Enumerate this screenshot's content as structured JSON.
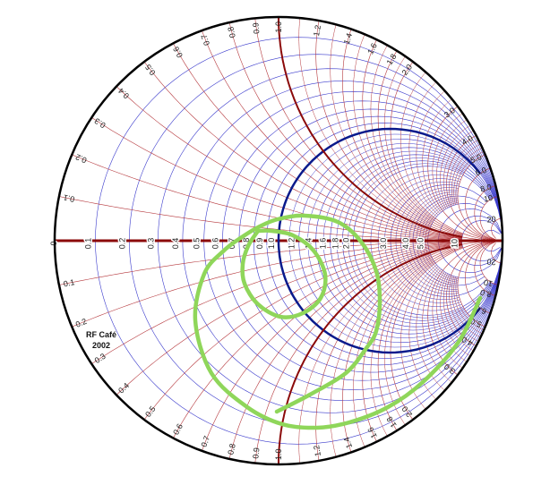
{
  "watermark": {
    "line1": "RF Café",
    "line2": "2002"
  },
  "colors": {
    "resistance_grid": "#3a3acc",
    "reactance_grid": "#b5373c",
    "unit_resistance_circle": "#0a1a8c",
    "unit_reactance_arcs": "#8b0a0a",
    "real_axis": "#8b0a0a",
    "trace": "#8fd65a",
    "outline": "#000000"
  },
  "chart_data": {
    "type": "smith",
    "coordinate": "reflection coefficient (real, imaginary)",
    "resistance_labels": [
      "0",
      "0.1",
      "0.2",
      "0.3",
      "0.4",
      "0.5",
      "0.6",
      "0.7",
      "0.8",
      "0.9",
      "1.0",
      "1.2",
      "1.4",
      "1.6",
      "1.8",
      "2.0",
      "3.0",
      "4.0",
      "5.0",
      "10"
    ],
    "reactance_labels": [
      "0.1",
      "0.2",
      "0.3",
      "0.4",
      "0.5",
      "0.6",
      "0.7",
      "0.8",
      "0.9",
      "1.0",
      "1.2",
      "1.4",
      "1.6",
      "1.8",
      "2.0",
      "3.0",
      "4.0",
      "5.0",
      "6.0",
      "8.0",
      "10",
      "20"
    ],
    "grid": {
      "resistance_full": [
        0.1,
        0.2,
        0.3,
        0.4,
        0.5,
        0.6,
        0.7,
        0.8,
        0.9,
        1.0,
        1.2,
        1.4,
        1.6,
        1.8,
        2.0,
        3.0,
        4.0,
        5.0,
        6.0,
        8.0,
        10,
        20
      ],
      "resistance_fine": [
        1.1,
        1.3,
        1.5,
        1.7,
        1.9,
        2.2,
        2.4,
        2.6,
        2.8,
        3.2,
        3.4,
        3.6,
        3.8,
        4.2,
        4.4,
        4.6,
        4.8
      ],
      "reactance_full": [
        1.0,
        2.0,
        3.0,
        4.0,
        5.0,
        6.0,
        8.0,
        10,
        20
      ],
      "reactance_mid": [
        0.1,
        0.2,
        0.3,
        0.4,
        0.5,
        0.6,
        0.7,
        0.8,
        0.9,
        1.2,
        1.4,
        1.6,
        1.8
      ],
      "reactance_fine": [
        1.1,
        1.3,
        1.5,
        1.7,
        1.9,
        2.2,
        2.4,
        2.6,
        2.8,
        3.2,
        3.4,
        3.6,
        3.8,
        4.2,
        4.4,
        4.6,
        4.8
      ]
    },
    "highlighted": {
      "resistance": 1.0,
      "reactance": [
        1.0,
        -1.0
      ]
    },
    "trace": [
      [
        [
          0.9,
          -0.256
        ],
        [
          0.804,
          -0.452
        ],
        [
          0.644,
          -0.632
        ],
        [
          0.488,
          -0.744
        ],
        [
          0.316,
          -0.812
        ],
        [
          0.172,
          -0.836
        ],
        [
          0.016,
          -0.82
        ],
        [
          -0.14,
          -0.744
        ],
        [
          -0.3,
          -0.592
        ],
        [
          -0.372,
          -0.356
        ],
        [
          -0.332,
          -0.148
        ],
        [
          -0.244,
          -0.044
        ],
        [
          -0.164,
          0.016
        ],
        [
          -0.084,
          0.064
        ],
        [
          -0.004,
          0.096
        ],
        [
          0.116,
          0.112
        ],
        [
          0.264,
          0.084
        ],
        [
          0.368,
          -0.004
        ],
        [
          0.436,
          -0.136
        ],
        [
          0.452,
          -0.272
        ],
        [
          0.436,
          -0.404
        ],
        [
          0.392,
          -0.48
        ],
        [
          0.3,
          -0.592
        ],
        [
          0.14,
          -0.688
        ],
        [
          -0.008,
          -0.764
        ]
      ],
      [
        [
          -0.092,
          0.044
        ],
        [
          -0.032,
          0.044
        ],
        [
          0.064,
          0.024
        ],
        [
          0.156,
          -0.044
        ],
        [
          0.208,
          -0.152
        ],
        [
          0.188,
          -0.256
        ],
        [
          0.108,
          -0.324
        ],
        [
          0.008,
          -0.34
        ],
        [
          -0.092,
          -0.284
        ],
        [
          -0.152,
          -0.192
        ],
        [
          -0.16,
          -0.104
        ],
        [
          -0.136,
          -0.024
        ],
        [
          -0.092,
          0.044
        ]
      ]
    ]
  }
}
